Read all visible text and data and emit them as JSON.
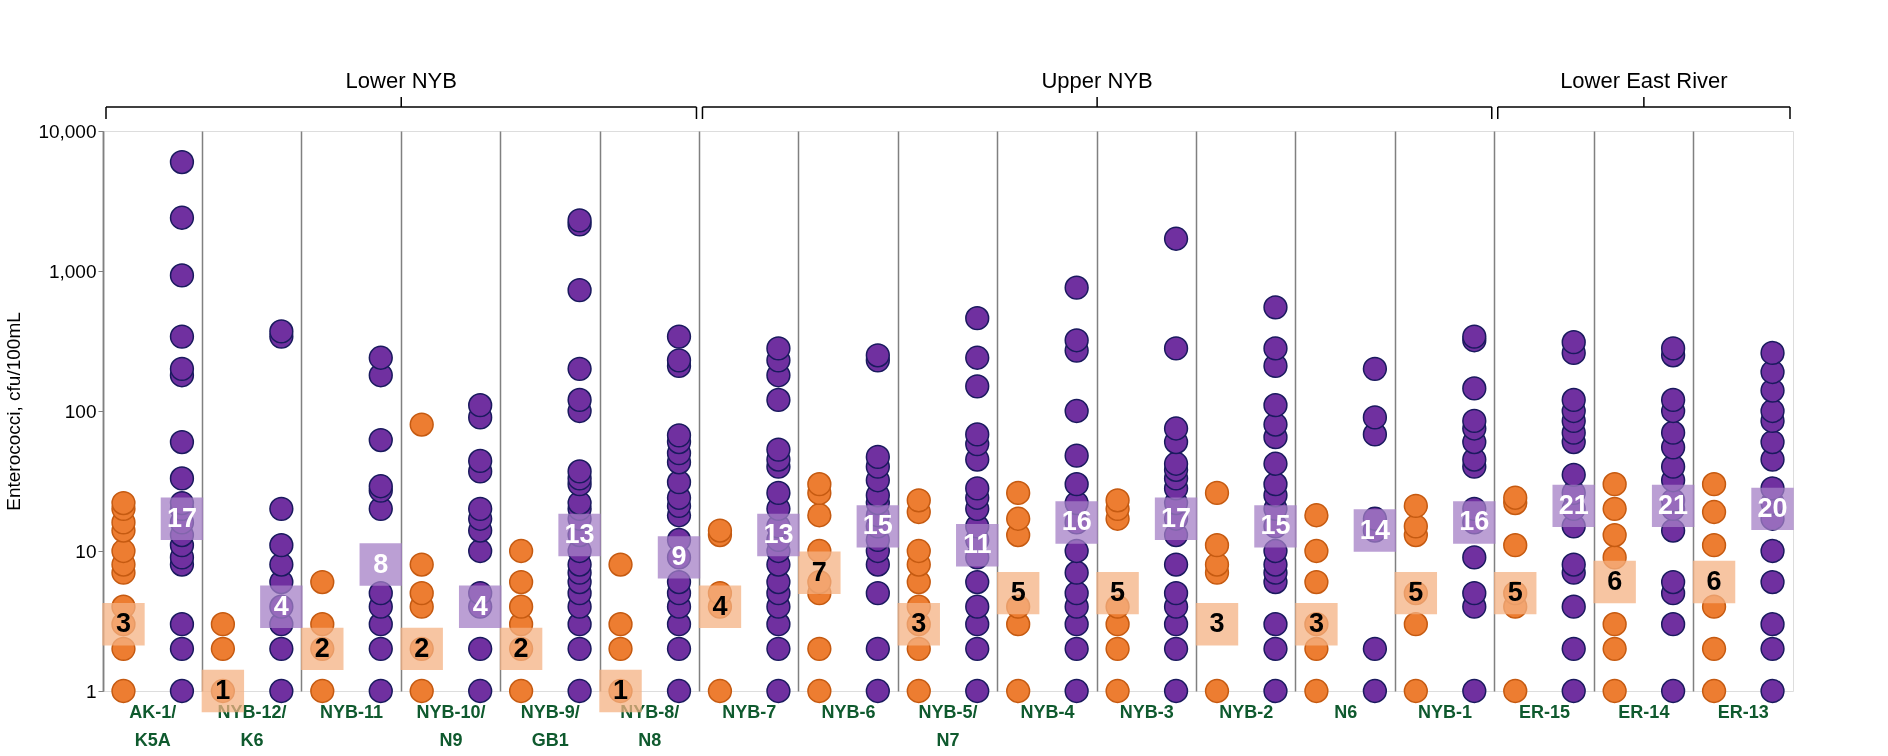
{
  "chart_data": {
    "type": "scatter",
    "ylabel": "Enterococci, cfu/100mL",
    "log": "y",
    "grid": "x",
    "marker": "circle",
    "legend": false,
    "categories": [
      "AK-1/K5A",
      "NYB-12/K6",
      "NYB-11",
      "NYB-10/N9",
      "NYB-9/GB1",
      "NYB-8/N8",
      "NYB-7",
      "NYB-6",
      "NYB-5/N7",
      "NYB-4",
      "NYB-3",
      "NYB-2",
      "N6",
      "NYB-1",
      "ER-15",
      "ER-14",
      "ER-13"
    ],
    "ylim": [
      1,
      10000
    ],
    "yticks": [
      1,
      10,
      100,
      {
        "value": 1000,
        "label": "1,000"
      },
      {
        "value": 10000,
        "label": "10,000"
      }
    ],
    "series": [
      {
        "color": "#ed7d31",
        "x": [
          "AK-1/K5A",
          "AK-1/K5A",
          "AK-1/K5A",
          "AK-1/K5A",
          "AK-1/K5A",
          "AK-1/K5A",
          "AK-1/K5A",
          "AK-1/K5A",
          "AK-1/K5A",
          "AK-1/K5A",
          "AK-1/K5A",
          "NYB-12/K6",
          "NYB-12/K6",
          "NYB-12/K6",
          "NYB-11",
          "NYB-11",
          "NYB-11",
          "NYB-11",
          "NYB-10/N9",
          "NYB-10/N9",
          "NYB-10/N9",
          "NYB-10/N9",
          "NYB-10/N9",
          "NYB-10/N9",
          "NYB-9/GB1",
          "NYB-9/GB1",
          "NYB-9/GB1",
          "NYB-9/GB1",
          "NYB-9/GB1",
          "NYB-9/GB1",
          "NYB-8/N8",
          "NYB-8/N8",
          "NYB-8/N8",
          "NYB-8/N8",
          "NYB-7",
          "NYB-7",
          "NYB-7",
          "NYB-7",
          "NYB-7",
          "NYB-6",
          "NYB-6",
          "NYB-6",
          "NYB-6",
          "NYB-6",
          "NYB-6",
          "NYB-6",
          "NYB-6",
          "NYB-5/N7",
          "NYB-5/N7",
          "NYB-5/N7",
          "NYB-5/N7",
          "NYB-5/N7",
          "NYB-5/N7",
          "NYB-5/N7",
          "NYB-5/N7",
          "NYB-5/N7",
          "NYB-4",
          "NYB-4",
          "NYB-4",
          "NYB-4",
          "NYB-4",
          "NYB-4",
          "NYB-3",
          "NYB-3",
          "NYB-3",
          "NYB-3",
          "NYB-3",
          "NYB-3",
          "NYB-3",
          "NYB-2",
          "NYB-2",
          "NYB-2",
          "NYB-2",
          "NYB-2",
          "N6",
          "N6",
          "N6",
          "N6",
          "N6",
          "N6",
          "NYB-1",
          "NYB-1",
          "NYB-1",
          "NYB-1",
          "NYB-1",
          "NYB-1",
          "ER-15",
          "ER-15",
          "ER-15",
          "ER-15",
          "ER-15",
          "ER-15",
          "ER-14",
          "ER-14",
          "ER-14",
          "ER-14",
          "ER-14",
          "ER-14",
          "ER-14",
          "ER-13",
          "ER-13",
          "ER-13",
          "ER-13",
          "ER-13",
          "ER-13"
        ],
        "values": [
          1,
          2,
          3,
          4,
          7,
          8,
          10,
          14,
          16,
          20,
          22,
          1,
          2,
          3,
          1,
          2,
          3,
          6,
          1,
          2,
          4,
          5,
          8,
          80,
          1,
          2,
          3,
          4,
          6,
          10,
          1,
          2,
          3,
          8,
          1,
          4,
          5,
          13,
          14,
          1,
          2,
          5,
          6,
          10,
          18,
          26,
          30,
          1,
          2,
          3,
          4,
          6,
          8,
          10,
          19,
          23,
          1,
          3,
          4,
          13,
          17,
          26,
          1,
          2,
          3,
          4,
          17,
          20,
          23,
          1,
          7,
          8,
          11,
          26,
          1,
          2,
          3,
          6,
          10,
          18,
          1,
          3,
          5,
          13,
          15,
          21,
          1,
          4,
          5,
          11,
          22,
          24,
          1,
          2,
          3,
          9,
          13,
          20,
          30,
          1,
          2,
          4,
          11,
          19,
          30
        ]
      },
      {
        "color": "#f4b183",
        "marker": "square",
        "values": [
          3,
          1,
          2,
          2,
          2,
          1,
          4,
          7,
          3,
          5,
          5,
          3,
          3,
          5,
          5,
          6,
          6
        ],
        "value_labels": [
          "3",
          "1",
          "2",
          "2",
          "2",
          "1",
          "4",
          "7",
          "3",
          "5",
          "5",
          "3",
          "3",
          "5",
          "5",
          "6",
          "6"
        ]
      },
      {
        "color": "#a47fc6",
        "marker": "square",
        "values": [
          17,
          4,
          8,
          4,
          13,
          9,
          13,
          15,
          11,
          16,
          17,
          15,
          14,
          16,
          21,
          21,
          20
        ],
        "value_labels": [
          "17",
          "4",
          "8",
          "4",
          "13",
          "9",
          "13",
          "15",
          "11",
          "16",
          "17",
          "15",
          "14",
          "16",
          "21",
          "21",
          "20"
        ]
      },
      {
        "color": "#7030a0",
        "x": [
          "AK-1/K5A",
          "AK-1/K5A",
          "AK-1/K5A",
          "AK-1/K5A",
          "AK-1/K5A",
          "AK-1/K5A",
          "AK-1/K5A",
          "AK-1/K5A",
          "AK-1/K5A",
          "AK-1/K5A",
          "AK-1/K5A",
          "AK-1/K5A",
          "AK-1/K5A",
          "AK-1/K5A",
          "AK-1/K5A",
          "AK-1/K5A",
          "AK-1/K5A",
          "AK-1/K5A",
          "NYB-12/K6",
          "NYB-12/K6",
          "NYB-12/K6",
          "NYB-12/K6",
          "NYB-12/K6",
          "NYB-12/K6",
          "NYB-12/K6",
          "NYB-12/K6",
          "NYB-12/K6",
          "NYB-12/K6",
          "NYB-11",
          "NYB-11",
          "NYB-11",
          "NYB-11",
          "NYB-11",
          "NYB-11",
          "NYB-11",
          "NYB-11",
          "NYB-11",
          "NYB-11",
          "NYB-11",
          "NYB-10/N9",
          "NYB-10/N9",
          "NYB-10/N9",
          "NYB-10/N9",
          "NYB-10/N9",
          "NYB-10/N9",
          "NYB-10/N9",
          "NYB-10/N9",
          "NYB-10/N9",
          "NYB-10/N9",
          "NYB-10/N9",
          "NYB-10/N9",
          "NYB-9/GB1",
          "NYB-9/GB1",
          "NYB-9/GB1",
          "NYB-9/GB1",
          "NYB-9/GB1",
          "NYB-9/GB1",
          "NYB-9/GB1",
          "NYB-9/GB1",
          "NYB-9/GB1",
          "NYB-9/GB1",
          "NYB-9/GB1",
          "NYB-9/GB1",
          "NYB-9/GB1",
          "NYB-9/GB1",
          "NYB-9/GB1",
          "NYB-9/GB1",
          "NYB-9/GB1",
          "NYB-9/GB1",
          "NYB-9/GB1",
          "NYB-9/GB1",
          "NYB-9/GB1",
          "NYB-9/GB1",
          "NYB-8/N8",
          "NYB-8/N8",
          "NYB-8/N8",
          "NYB-8/N8",
          "NYB-8/N8",
          "NYB-8/N8",
          "NYB-8/N8",
          "NYB-8/N8",
          "NYB-8/N8",
          "NYB-8/N8",
          "NYB-8/N8",
          "NYB-8/N8",
          "NYB-8/N8",
          "NYB-8/N8",
          "NYB-8/N8",
          "NYB-8/N8",
          "NYB-8/N8",
          "NYB-8/N8",
          "NYB-8/N8",
          "NYB-7",
          "NYB-7",
          "NYB-7",
          "NYB-7",
          "NYB-7",
          "NYB-7",
          "NYB-7",
          "NYB-7",
          "NYB-7",
          "NYB-7",
          "NYB-7",
          "NYB-7",
          "NYB-7",
          "NYB-7",
          "NYB-7",
          "NYB-7",
          "NYB-7",
          "NYB-7",
          "NYB-7",
          "NYB-6",
          "NYB-6",
          "NYB-6",
          "NYB-6",
          "NYB-6",
          "NYB-6",
          "NYB-6",
          "NYB-6",
          "NYB-6",
          "NYB-6",
          "NYB-6",
          "NYB-6",
          "NYB-6",
          "NYB-6",
          "NYB-6",
          "NYB-5/N7",
          "NYB-5/N7",
          "NYB-5/N7",
          "NYB-5/N7",
          "NYB-5/N7",
          "NYB-5/N7",
          "NYB-5/N7",
          "NYB-5/N7",
          "NYB-5/N7",
          "NYB-5/N7",
          "NYB-5/N7",
          "NYB-5/N7",
          "NYB-5/N7",
          "NYB-5/N7",
          "NYB-5/N7",
          "NYB-5/N7",
          "NYB-5/N7",
          "NYB-4",
          "NYB-4",
          "NYB-4",
          "NYB-4",
          "NYB-4",
          "NYB-4",
          "NYB-4",
          "NYB-4",
          "NYB-4",
          "NYB-4",
          "NYB-4",
          "NYB-4",
          "NYB-4",
          "NYB-4",
          "NYB-4",
          "NYB-3",
          "NYB-3",
          "NYB-3",
          "NYB-3",
          "NYB-3",
          "NYB-3",
          "NYB-3",
          "NYB-3",
          "NYB-3",
          "NYB-3",
          "NYB-3",
          "NYB-3",
          "NYB-3",
          "NYB-3",
          "NYB-3",
          "NYB-3",
          "NYB-3",
          "NYB-2",
          "NYB-2",
          "NYB-2",
          "NYB-2",
          "NYB-2",
          "NYB-2",
          "NYB-2",
          "NYB-2",
          "NYB-2",
          "NYB-2",
          "NYB-2",
          "NYB-2",
          "NYB-2",
          "NYB-2",
          "NYB-2",
          "NYB-2",
          "NYB-2",
          "NYB-2",
          "N6",
          "N6",
          "N6",
          "N6",
          "N6",
          "N6",
          "N6",
          "NYB-1",
          "NYB-1",
          "NYB-1",
          "NYB-1",
          "NYB-1",
          "NYB-1",
          "NYB-1",
          "NYB-1",
          "NYB-1",
          "NYB-1",
          "NYB-1",
          "NYB-1",
          "NYB-1",
          "NYB-1",
          "ER-15",
          "ER-15",
          "ER-15",
          "ER-15",
          "ER-15",
          "ER-15",
          "ER-15",
          "ER-15",
          "ER-15",
          "ER-15",
          "ER-15",
          "ER-15",
          "ER-15",
          "ER-15",
          "ER-15",
          "ER-15",
          "ER-14",
          "ER-14",
          "ER-14",
          "ER-14",
          "ER-14",
          "ER-14",
          "ER-14",
          "ER-14",
          "ER-14",
          "ER-14",
          "ER-14",
          "ER-14",
          "ER-14",
          "ER-14",
          "ER-14",
          "ER-13",
          "ER-13",
          "ER-13",
          "ER-13",
          "ER-13",
          "ER-13",
          "ER-13",
          "ER-13",
          "ER-13",
          "ER-13",
          "ER-13",
          "ER-13",
          "ER-13",
          "ER-13",
          "ER-13"
        ],
        "values": [
          1,
          2,
          3,
          8,
          9,
          11,
          13,
          16,
          20,
          22,
          33,
          60,
          180,
          200,
          340,
          930,
          2400,
          6000,
          1,
          2,
          3,
          4,
          6,
          8,
          11,
          20,
          340,
          370,
          1,
          2,
          3,
          4,
          5,
          20,
          27,
          29,
          62,
          180,
          240,
          1,
          2,
          4,
          5,
          10,
          14,
          17,
          20,
          37,
          44,
          90,
          110,
          1,
          2,
          3,
          4,
          5,
          6,
          7,
          8,
          10,
          13,
          17,
          20,
          22,
          30,
          33,
          37,
          100,
          120,
          200,
          730,
          2150,
          2300,
          1,
          2,
          3,
          4,
          5,
          6,
          9,
          12,
          18,
          21,
          24,
          31,
          43,
          50,
          60,
          67,
          210,
          230,
          340,
          1,
          2,
          3,
          4,
          5,
          6,
          8,
          10,
          12,
          15,
          20,
          26,
          40,
          45,
          53,
          120,
          180,
          230,
          280,
          1,
          2,
          5,
          8,
          10,
          12,
          15,
          18,
          22,
          25,
          32,
          40,
          47,
          230,
          250,
          1,
          2,
          3,
          4,
          6,
          9,
          12,
          15,
          20,
          24,
          28,
          45,
          58,
          68,
          150,
          240,
          460,
          1,
          2,
          3,
          4,
          5,
          7,
          10,
          16,
          22,
          30,
          48,
          100,
          270,
          320,
          760,
          1,
          2,
          3,
          4,
          5,
          8,
          13,
          17,
          22,
          28,
          33,
          38,
          42,
          60,
          75,
          280,
          1700,
          1,
          2,
          3,
          6,
          7,
          8,
          10,
          15,
          20,
          25,
          30,
          42,
          65,
          80,
          110,
          210,
          280,
          550,
          1,
          2,
          14,
          17,
          68,
          90,
          200,
          1,
          4,
          5,
          9,
          16,
          20,
          40,
          45,
          60,
          75,
          85,
          145,
          320,
          340,
          1,
          2,
          4,
          7,
          8,
          15,
          20,
          26,
          35,
          60,
          70,
          85,
          100,
          120,
          260,
          310,
          1,
          3,
          5,
          6,
          14,
          20,
          23,
          32,
          40,
          55,
          70,
          100,
          120,
          250,
          280,
          1,
          2,
          3,
          6,
          10,
          17,
          22,
          28,
          45,
          60,
          85,
          100,
          140,
          190,
          260
        ]
      }
    ],
    "annotations": [
      "Lower NYB",
      "Upper NYB",
      "Lower East River"
    ]
  }
}
